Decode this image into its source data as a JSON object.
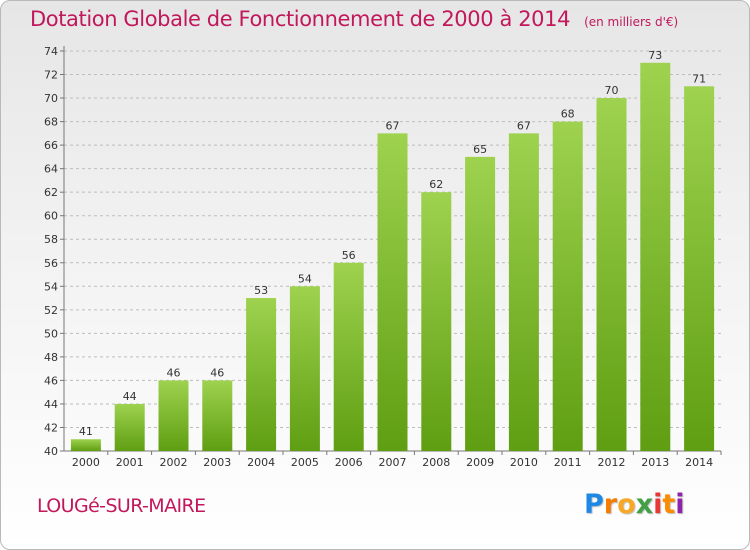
{
  "title": "Dotation Globale de Fonctionnement de 2000 à 2014",
  "subtitle": "(en milliers d'€)",
  "commune": "LOUGé-SUR-MAIRE",
  "logo": "Proxiti",
  "colors": {
    "title": "#c2185b",
    "bar_top": "#9ed24f",
    "bar_bottom": "#5f9e12",
    "grid": "#bdbdbd"
  },
  "chart_data": {
    "type": "bar",
    "title": "Dotation Globale de Fonctionnement de 2000 à 2014",
    "subtitle": "(en milliers d'€)",
    "xlabel": "",
    "ylabel": "",
    "categories": [
      "2000",
      "2001",
      "2002",
      "2003",
      "2004",
      "2005",
      "2006",
      "2007",
      "2008",
      "2009",
      "2010",
      "2011",
      "2012",
      "2013",
      "2014"
    ],
    "values": [
      41,
      44,
      46,
      46,
      53,
      54,
      56,
      67,
      62,
      65,
      67,
      68,
      70,
      73,
      71
    ],
    "ylim": [
      40,
      74
    ],
    "yticks": [
      40,
      42,
      44,
      46,
      48,
      50,
      52,
      54,
      56,
      58,
      60,
      62,
      64,
      66,
      68,
      70,
      72,
      74
    ],
    "grid": true,
    "grid_style": "dashed horizontal",
    "legend": "none"
  }
}
